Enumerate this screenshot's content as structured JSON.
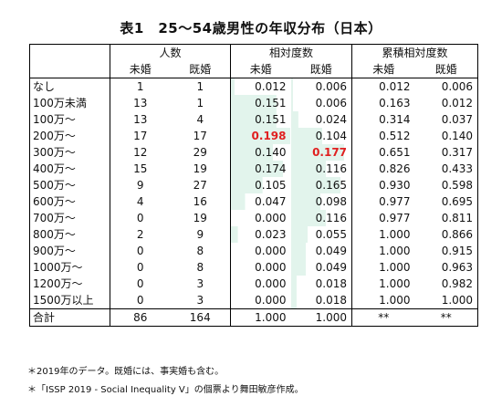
{
  "title": "表1　25〜54歳男性の年収分布（日本）",
  "headers": {
    "group_count": "人数",
    "group_rel": "相対度数",
    "group_cum": "累積相対度数",
    "unmarried": "未婚",
    "married": "既婚"
  },
  "rows": [
    {
      "label": "なし",
      "n_un": "1",
      "n_ma": "1",
      "rel_un": "0.012",
      "rel_ma": "0.006",
      "cum_un": "0.012",
      "cum_ma": "0.006"
    },
    {
      "label": "100万未満",
      "n_un": "13",
      "n_ma": "1",
      "rel_un": "0.151",
      "rel_ma": "0.006",
      "cum_un": "0.163",
      "cum_ma": "0.012"
    },
    {
      "label": "100万〜",
      "n_un": "13",
      "n_ma": "4",
      "rel_un": "0.151",
      "rel_ma": "0.024",
      "cum_un": "0.314",
      "cum_ma": "0.037"
    },
    {
      "label": "200万〜",
      "n_un": "17",
      "n_ma": "17",
      "rel_un": "0.198",
      "rel_ma": "0.104",
      "cum_un": "0.512",
      "cum_ma": "0.140"
    },
    {
      "label": "300万〜",
      "n_un": "12",
      "n_ma": "29",
      "rel_un": "0.140",
      "rel_ma": "0.177",
      "cum_un": "0.651",
      "cum_ma": "0.317"
    },
    {
      "label": "400万〜",
      "n_un": "15",
      "n_ma": "19",
      "rel_un": "0.174",
      "rel_ma": "0.116",
      "cum_un": "0.826",
      "cum_ma": "0.433"
    },
    {
      "label": "500万〜",
      "n_un": "9",
      "n_ma": "27",
      "rel_un": "0.105",
      "rel_ma": "0.165",
      "cum_un": "0.930",
      "cum_ma": "0.598"
    },
    {
      "label": "600万〜",
      "n_un": "4",
      "n_ma": "16",
      "rel_un": "0.047",
      "rel_ma": "0.098",
      "cum_un": "0.977",
      "cum_ma": "0.695"
    },
    {
      "label": "700万〜",
      "n_un": "0",
      "n_ma": "19",
      "rel_un": "0.000",
      "rel_ma": "0.116",
      "cum_un": "0.977",
      "cum_ma": "0.811"
    },
    {
      "label": "800万〜",
      "n_un": "2",
      "n_ma": "9",
      "rel_un": "0.023",
      "rel_ma": "0.055",
      "cum_un": "1.000",
      "cum_ma": "0.866"
    },
    {
      "label": "900万〜",
      "n_un": "0",
      "n_ma": "8",
      "rel_un": "0.000",
      "rel_ma": "0.049",
      "cum_un": "1.000",
      "cum_ma": "0.915"
    },
    {
      "label": "1000万〜",
      "n_un": "0",
      "n_ma": "8",
      "rel_un": "0.000",
      "rel_ma": "0.049",
      "cum_un": "1.000",
      "cum_ma": "0.963"
    },
    {
      "label": "1200万〜",
      "n_un": "0",
      "n_ma": "3",
      "rel_un": "0.000",
      "rel_ma": "0.018",
      "cum_un": "1.000",
      "cum_ma": "0.982"
    },
    {
      "label": "1500万以上",
      "n_un": "0",
      "n_ma": "3",
      "rel_un": "0.000",
      "rel_ma": "0.018",
      "cum_un": "1.000",
      "cum_ma": "1.000"
    }
  ],
  "total": {
    "label": "合計",
    "n_un": "86",
    "n_ma": "164",
    "rel_un": "1.000",
    "rel_ma": "1.000",
    "cum_un": "**",
    "cum_ma": "**"
  },
  "highlight": {
    "rel_un_row": 3,
    "rel_ma_row": 4,
    "color": "#e02020",
    "bar_color": "#e2f4ec"
  },
  "notes": [
    "＊2019年のデータ。既婚には、事実婚も含む。",
    "＊「ISSP 2019 - Social Inequality V」の個票より舞田敏彦作成。"
  ]
}
